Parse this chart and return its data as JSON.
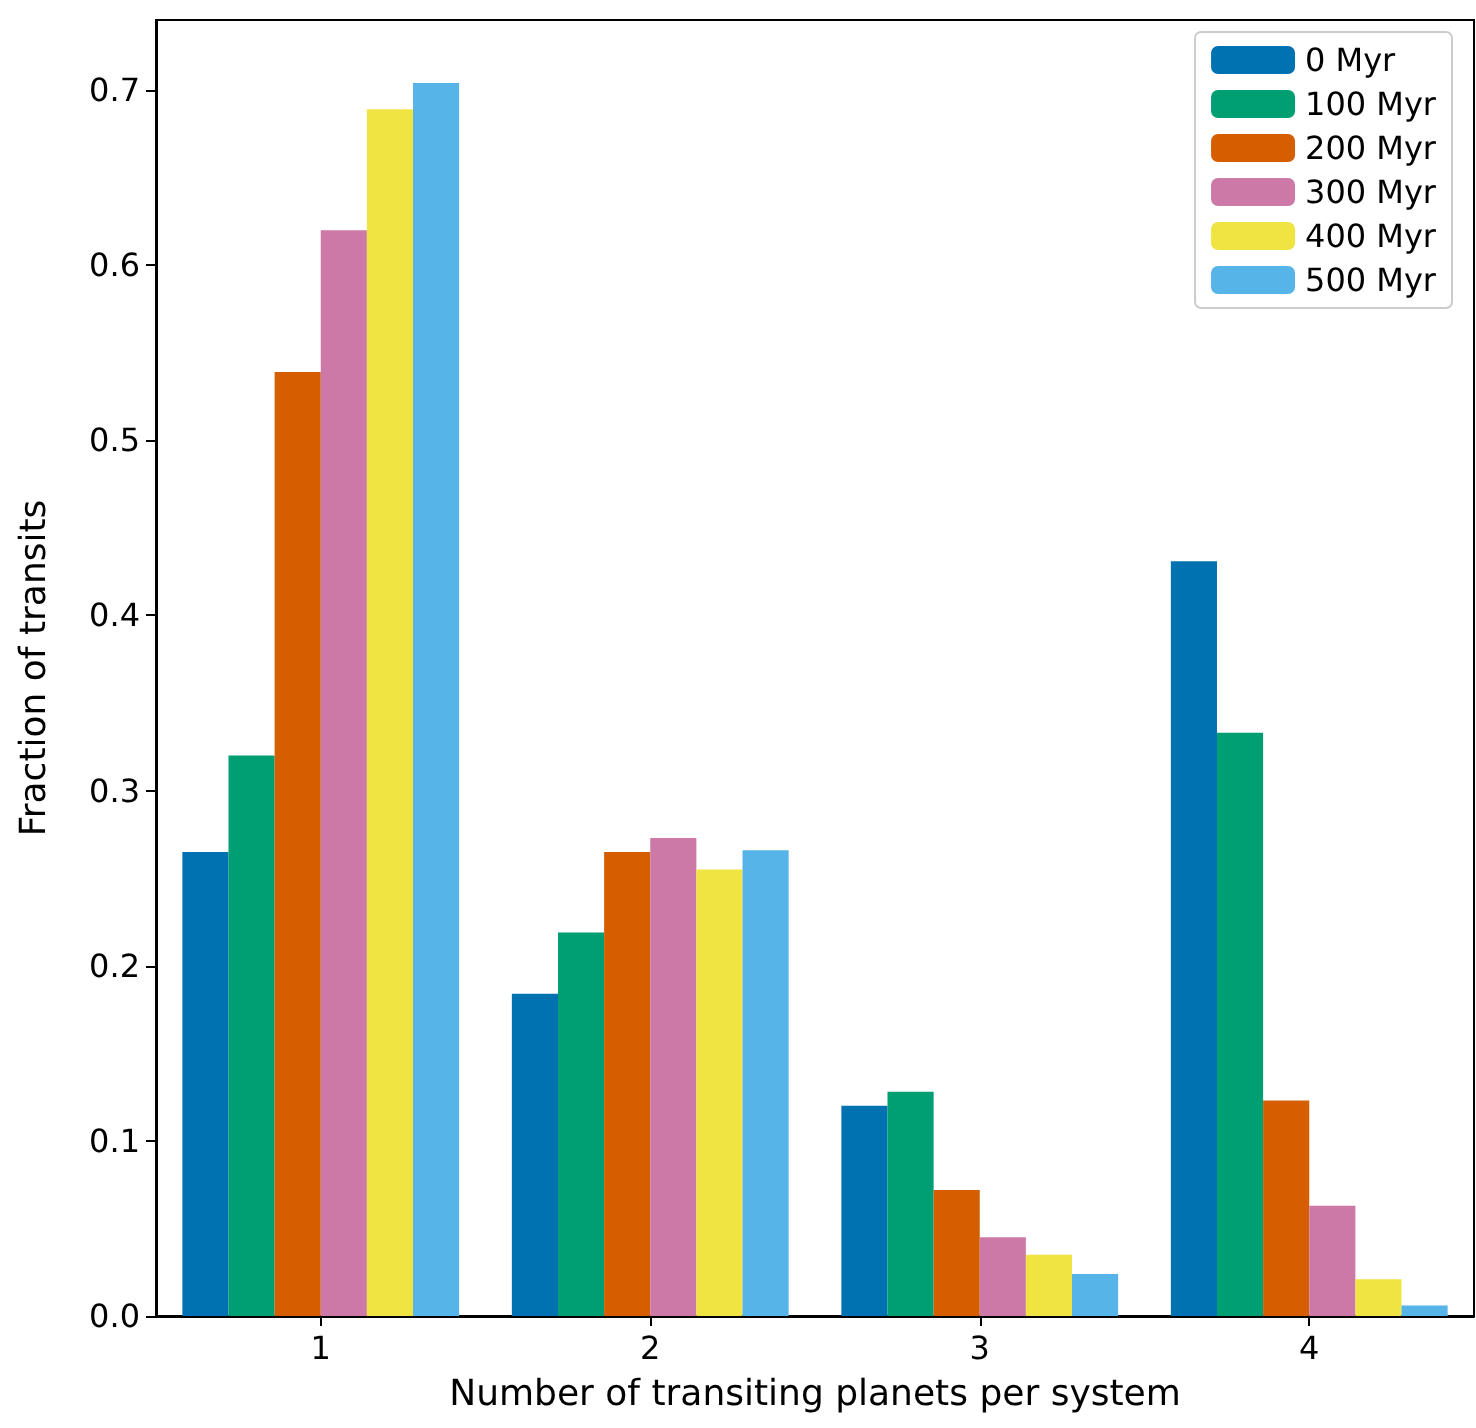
{
  "chart_data": {
    "type": "bar",
    "xlabel": "Number of transiting planets per system",
    "ylabel": "Fraction of transits",
    "categories": [
      "1",
      "2",
      "3",
      "4"
    ],
    "series": [
      {
        "name": "0 Myr",
        "color": "#0072b2",
        "values": [
          0.265,
          0.184,
          0.12,
          0.431
        ]
      },
      {
        "name": "100 Myr",
        "color": "#009e73",
        "values": [
          0.32,
          0.219,
          0.128,
          0.333
        ]
      },
      {
        "name": "200 Myr",
        "color": "#d55e00",
        "values": [
          0.539,
          0.265,
          0.072,
          0.123
        ]
      },
      {
        "name": "300 Myr",
        "color": "#cc79a7",
        "values": [
          0.62,
          0.273,
          0.045,
          0.063
        ]
      },
      {
        "name": "400 Myr",
        "color": "#f0e442",
        "values": [
          0.689,
          0.255,
          0.035,
          0.021
        ]
      },
      {
        "name": "500 Myr",
        "color": "#56b4e9",
        "values": [
          0.704,
          0.266,
          0.024,
          0.006
        ]
      }
    ],
    "ylim": [
      0,
      0.74
    ],
    "yticks": [
      {
        "value": 0,
        "label": "0.0"
      },
      0.1,
      0.2,
      0.3,
      0.4,
      0.5,
      0.6,
      0.7
    ],
    "grid": false,
    "legend": "top right"
  }
}
